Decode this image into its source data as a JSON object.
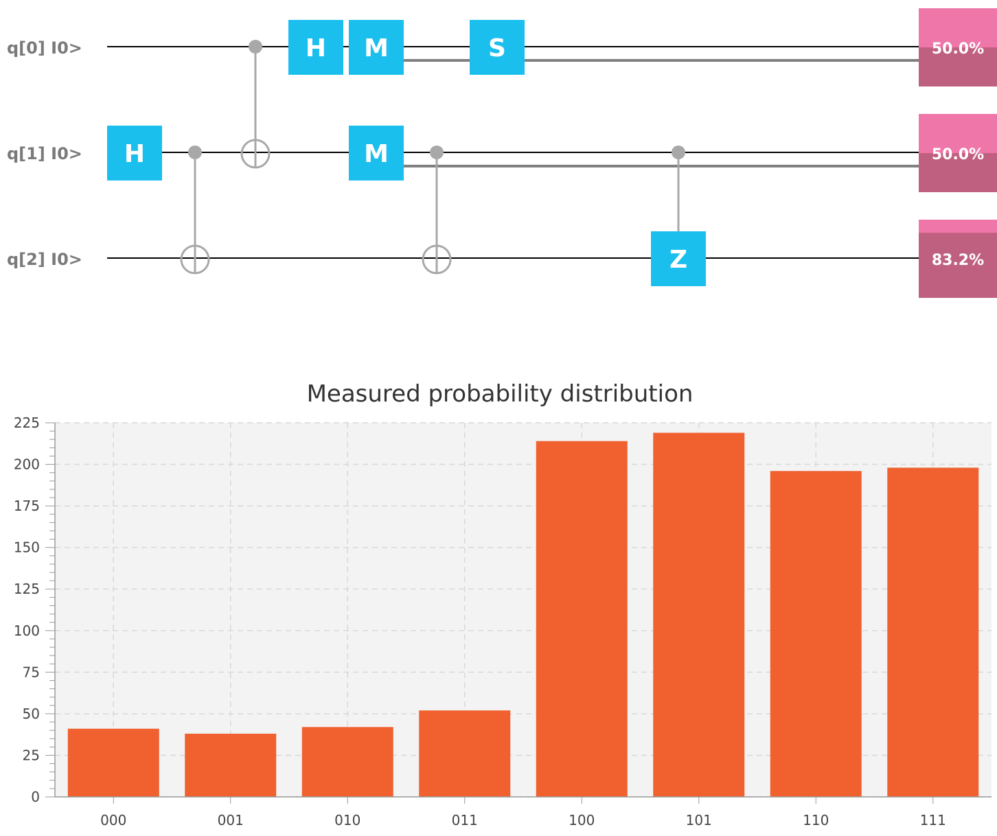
{
  "circuit": {
    "qubits": [
      {
        "label": "q[0] I0>",
        "probability": 0.5,
        "probability_label": "50.0%"
      },
      {
        "label": "q[1] I0>",
        "probability": 0.5,
        "probability_label": "50.0%"
      },
      {
        "label": "q[2] I0>",
        "probability": 0.832,
        "probability_label": "83.2%"
      }
    ],
    "gates": [
      {
        "name": "h-gate-q1",
        "label": "H"
      },
      {
        "name": "h-gate-q0",
        "label": "H"
      },
      {
        "name": "measure-gate-q0",
        "label": "M"
      },
      {
        "name": "measure-gate-q1",
        "label": "M"
      },
      {
        "name": "s-gate-q0",
        "label": "S"
      },
      {
        "name": "z-gate-q2",
        "label": "Z"
      }
    ],
    "controls": [
      {
        "name": "cnot-q1-to-q2"
      },
      {
        "name": "cnot-q0-to-q1"
      },
      {
        "name": "cnot-q1-to-q2-second"
      },
      {
        "name": "cz-q1-to-q2"
      }
    ],
    "colors": {
      "gate": "#1bbfee",
      "wire": "#000000",
      "classical_wire": "#808080",
      "control": "#a8a8a8",
      "prob_light": "#ee76a8",
      "prob_dark": "#c06080"
    }
  },
  "chart_data": {
    "type": "bar",
    "title": "Measured probability distribution",
    "categories": [
      "000",
      "001",
      "010",
      "011",
      "100",
      "101",
      "110",
      "111"
    ],
    "values": [
      41,
      38,
      42,
      52,
      214,
      219,
      196,
      198
    ],
    "ylim": [
      0,
      225
    ],
    "yticks": [
      "0",
      "25",
      "50",
      "75",
      "100",
      "125",
      "150",
      "175",
      "200",
      "225"
    ],
    "ytick_values": [
      0,
      25,
      50,
      75,
      100,
      125,
      150,
      175,
      200,
      225
    ],
    "grid": true,
    "xlabel": "",
    "ylabel": "",
    "colors": {
      "bar": "#f0612f",
      "background": "#f3f3f3",
      "grid": "#d8d8d8"
    }
  }
}
